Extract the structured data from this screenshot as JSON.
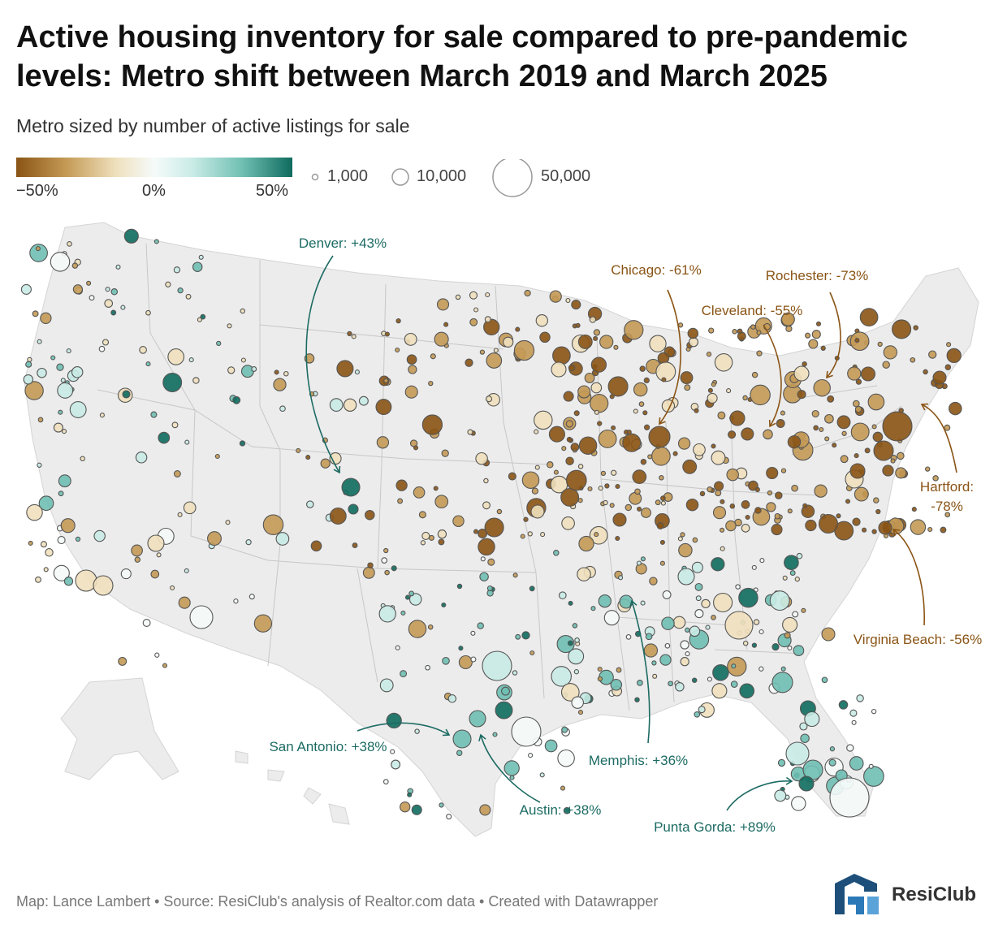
{
  "title": "Active housing inventory for sale compared to pre-pandemic levels: Metro shift between March 2019 and March 2025",
  "subtitle": "Metro sized by number of active listings for sale",
  "color_legend": {
    "ticks": [
      "−50%",
      "0%",
      "50%"
    ],
    "colors": [
      "#8a5415",
      "#c49a55",
      "#efe0bd",
      "#f5fbfa",
      "#c9ebe6",
      "#6fbfb2",
      "#0e6b5e"
    ]
  },
  "size_legend": {
    "items": [
      {
        "label": "1,000",
        "value": 1000
      },
      {
        "label": "10,000",
        "value": 10000
      },
      {
        "label": "50,000",
        "value": 50000
      }
    ]
  },
  "annotations": [
    {
      "id": "denver",
      "text": "Denver: +43%",
      "color": "#1c6b63"
    },
    {
      "id": "chicago",
      "text": "Chicago: -61%",
      "color": "#8a5415"
    },
    {
      "id": "rochester",
      "text": "Rochester: -73%",
      "color": "#8a5415"
    },
    {
      "id": "cleveland",
      "text": "Cleveland: -55%",
      "color": "#8a5415"
    },
    {
      "id": "hartford",
      "text": "Hartford: -78%",
      "line1": "Hartford:",
      "line2": "-78%",
      "color": "#8a5415"
    },
    {
      "id": "virginia-beach",
      "text": "Virginia Beach: -56%",
      "color": "#8a5415"
    },
    {
      "id": "san-antonio",
      "text": "San Antonio: +38%",
      "color": "#1c6b63"
    },
    {
      "id": "memphis",
      "text": "Memphis: +36%",
      "color": "#1c6b63"
    },
    {
      "id": "austin",
      "text": "Austin: +38%",
      "color": "#1c6b63"
    },
    {
      "id": "punta-gorda",
      "text": "Punta Gorda: +89%",
      "color": "#1c6b63"
    }
  ],
  "map_colors": {
    "land": "#ececec",
    "border": "#c9c9c9",
    "brown": "#8a5415",
    "teal": "#1c6b63"
  },
  "footer": "Map: Lance Lambert • Source: ResiClub's analysis of Realtor.com data • Created with Datawrapper",
  "logo": {
    "text": "ResiClub",
    "icon": "resiclub-logo-icon"
  }
}
